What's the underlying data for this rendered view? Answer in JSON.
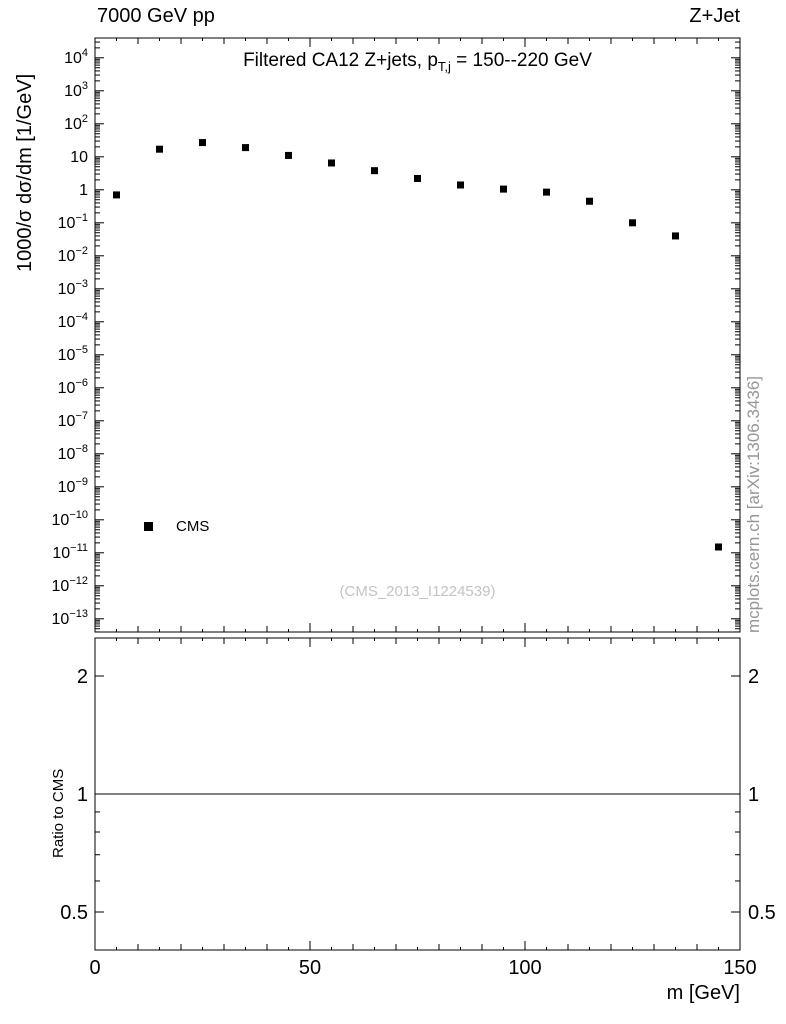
{
  "chart_data": {
    "type": "scatter",
    "top_left_label": "7000 GeV pp",
    "top_right_label": "Z+Jet",
    "title": {
      "pre": "Filtered CA12 Z+jets, p",
      "sub": "T,j",
      "post": " = 150--220 GeV"
    },
    "xlabel": "m [GeV]",
    "ylabel": "1000/σ  dσ/dm [1/GeV]",
    "ratio_ylabel": "Ratio to CMS",
    "watermark": "(CMS_2013_I1224539)",
    "side_label": "mcplots.cern.ch [arXiv:1306.3436]",
    "x_range": [
      0,
      150
    ],
    "x_ticks": [
      0,
      50,
      100,
      150
    ],
    "x_minor_step": 5,
    "y_scale": "log",
    "y_log_range": [
      -13.4,
      4.6
    ],
    "y_tick_exponents": [
      4,
      3,
      2,
      1,
      0,
      -1,
      -2,
      -3,
      -4,
      -5,
      -6,
      -7,
      -8,
      -9,
      -10,
      -11,
      -12,
      -13
    ],
    "ratio_scale": "log",
    "ratio_range": [
      0.4,
      2.5
    ],
    "ratio_ticks": [
      0.5,
      1,
      2
    ],
    "ratio_minor_ticks": [
      0.4,
      0.6,
      0.7,
      0.8,
      0.9
    ],
    "ratio_reference": 1,
    "grid": false,
    "legend_position": "left-bottom",
    "series": [
      {
        "name": "CMS",
        "marker": "filled-square",
        "color": "#000000",
        "x": [
          5,
          15,
          25,
          35,
          45,
          55,
          65,
          75,
          85,
          95,
          105,
          115,
          125,
          135,
          145
        ],
        "y": [
          0.7,
          17,
          27,
          19,
          11,
          6.5,
          3.8,
          2.2,
          1.4,
          1.05,
          0.85,
          0.45,
          0.1,
          0.04,
          1.5e-11
        ]
      }
    ]
  }
}
